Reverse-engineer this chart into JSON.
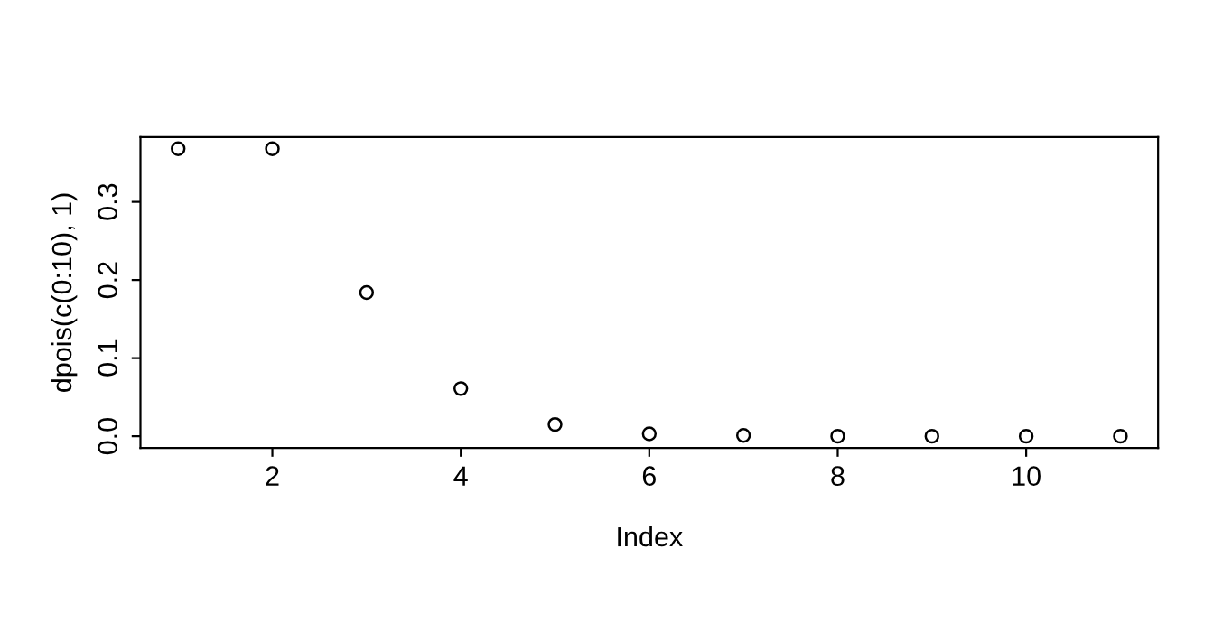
{
  "chart_data": {
    "type": "scatter",
    "xlabel": "Index",
    "ylabel": "dpois(c(0:10), 1)",
    "x": [
      1,
      2,
      3,
      4,
      5,
      6,
      7,
      8,
      9,
      10,
      11
    ],
    "series": [
      {
        "color": "#000000",
        "values": [
          0.368,
          0.368,
          0.184,
          0.061,
          0.015,
          0.003,
          0.001,
          0.0,
          0.0,
          0.0,
          0.0
        ]
      }
    ],
    "xlim": [
      0.6,
      11.4
    ],
    "ylim": [
      -0.015,
      0.383
    ],
    "xticks": [
      2,
      4,
      6,
      8,
      10
    ],
    "yticks": [
      {
        "value": 0,
        "label": "0.0"
      },
      0.1,
      0.2,
      0.3
    ],
    "marker": "circle",
    "grid": false,
    "legend": false
  }
}
